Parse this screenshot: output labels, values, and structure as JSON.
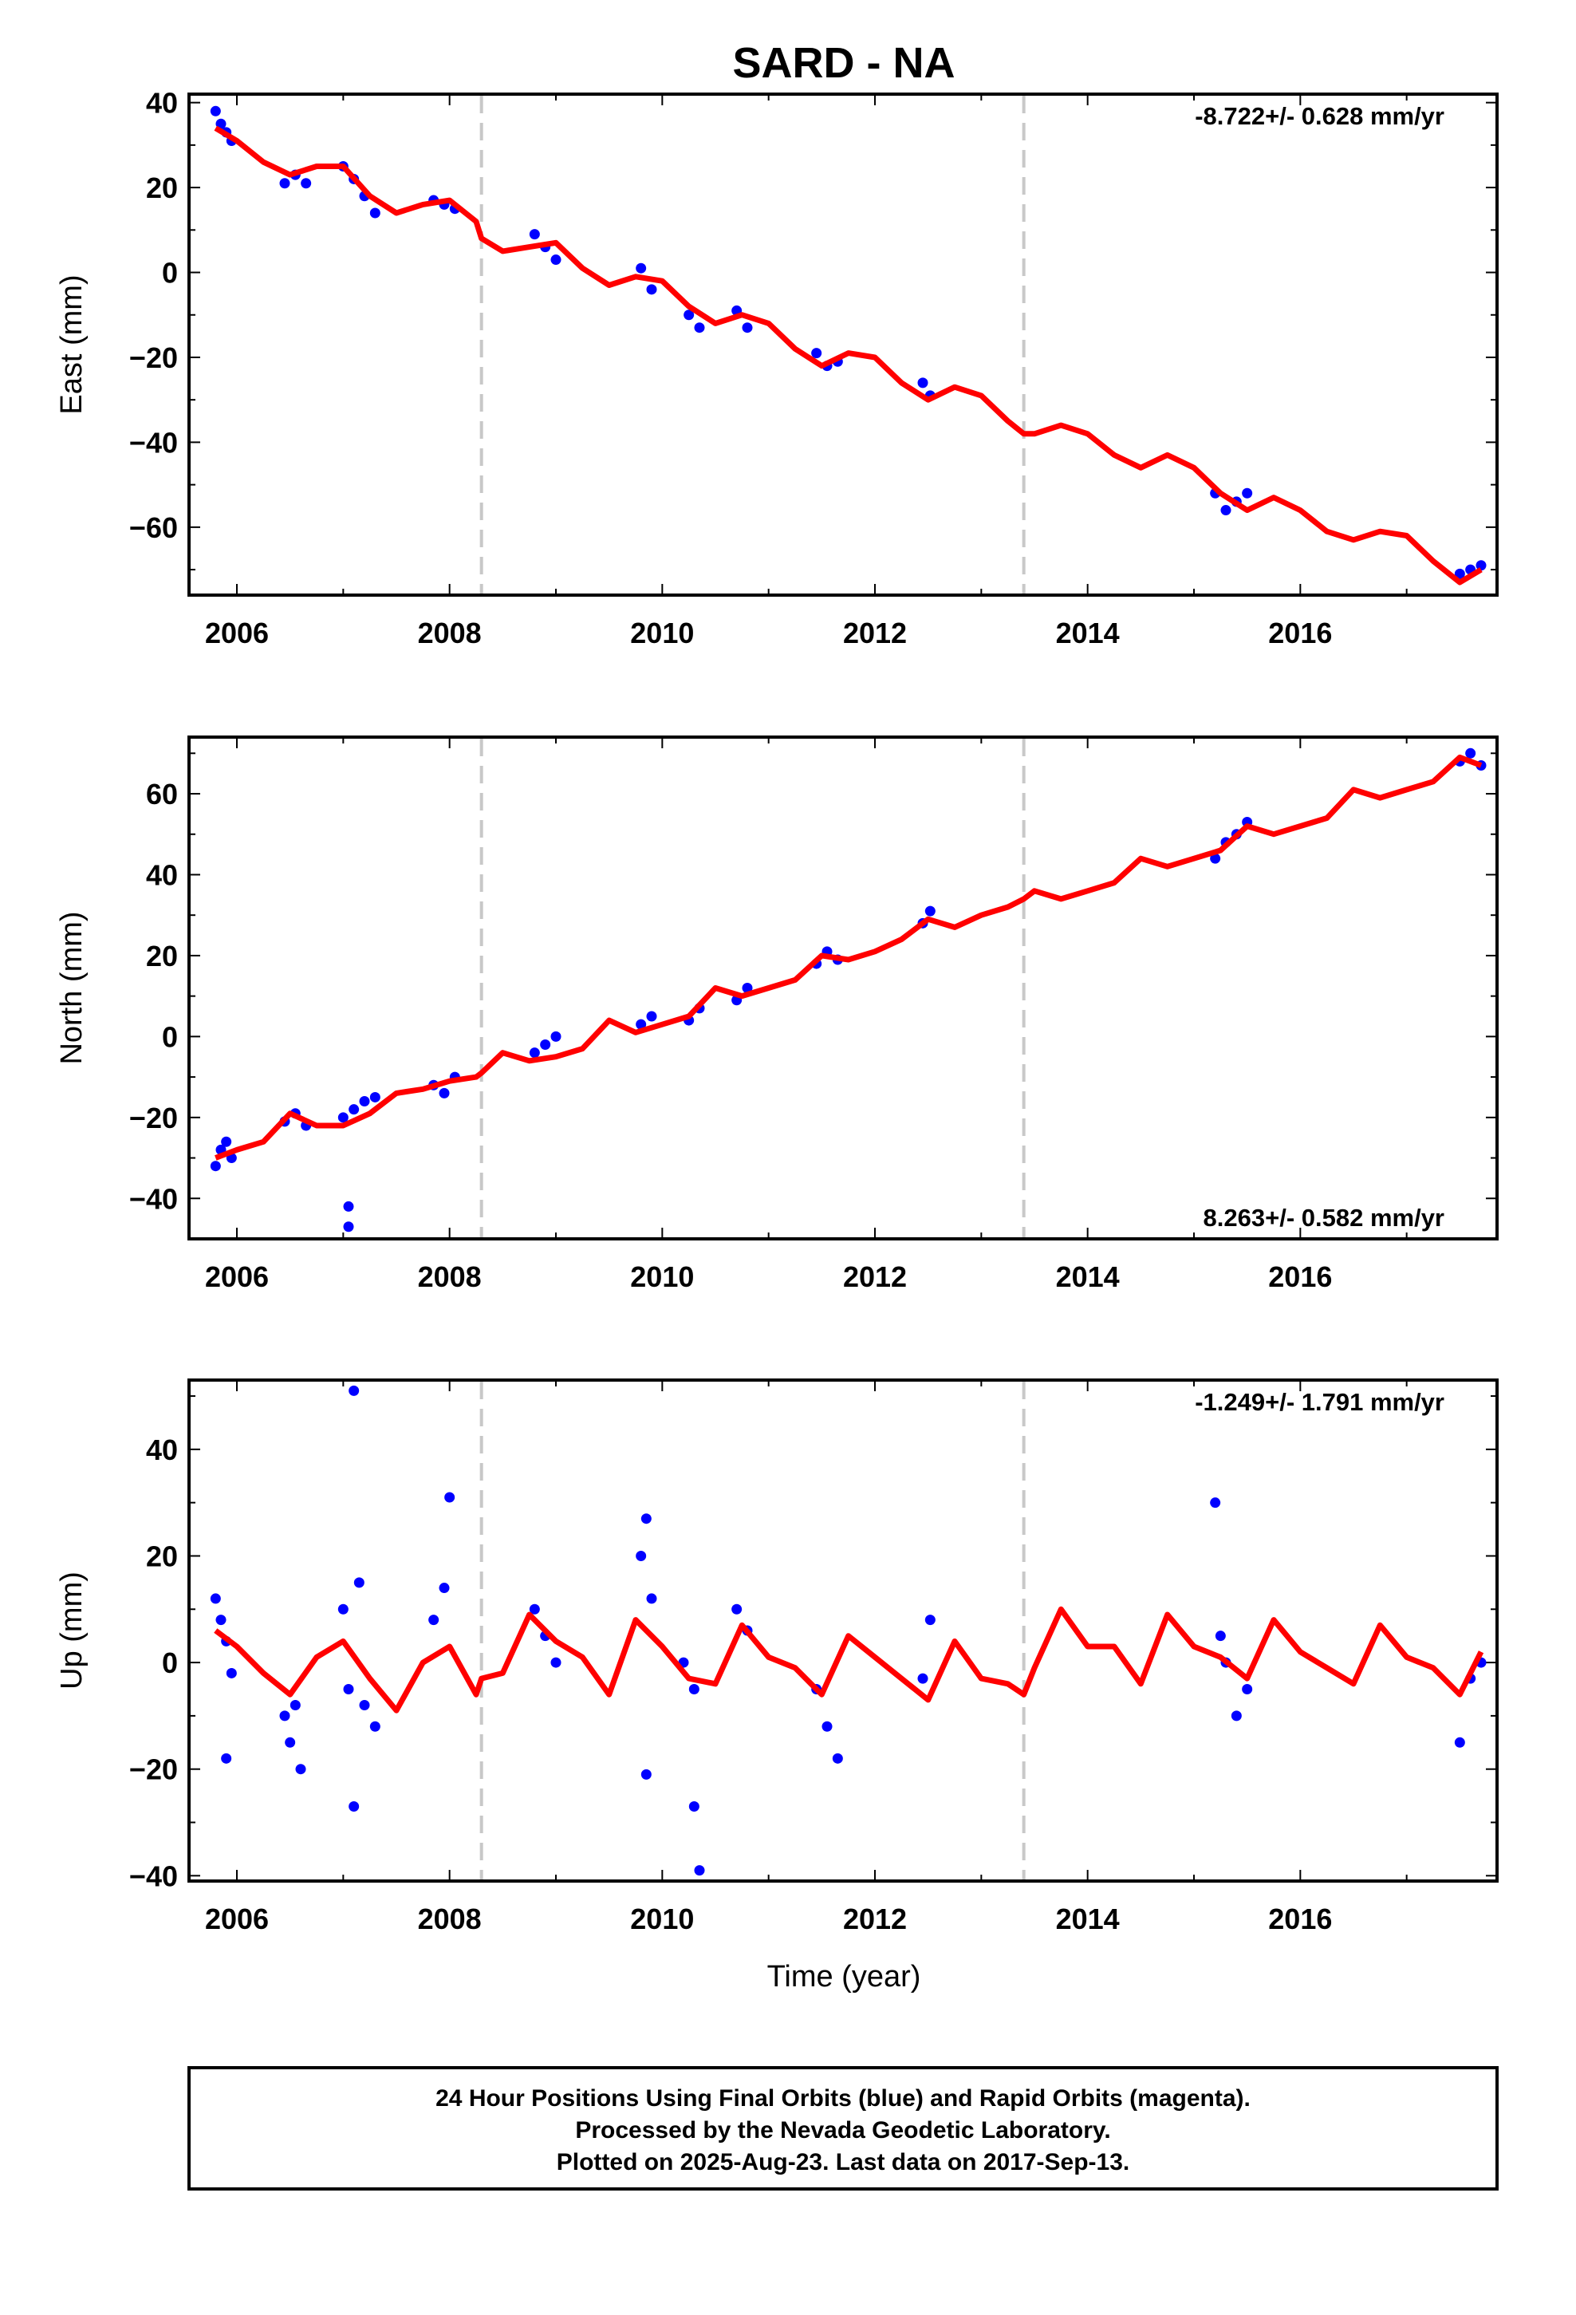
{
  "title": "SARD - NA",
  "xlabel": "Time (year)",
  "footer": {
    "line1": "24 Hour Positions Using Final Orbits (blue) and Rapid Orbits (magenta).",
    "line2": "Processed by the Nevada Geodetic Laboratory.",
    "line3": "Plotted on 2025-Aug-23. Last data on 2017-Sep-13."
  },
  "colors": {
    "data": "#0000ff",
    "model": "#ff0000",
    "steps": "#c8c8c8",
    "frame": "#000000"
  },
  "chart_data": [
    {
      "type": "scatter",
      "title": "",
      "ylabel": "East (mm)",
      "rate_label": "-8.722+/- 0.628 mm/yr",
      "rate_position": "top-right",
      "xlim": [
        2005.55,
        2017.85
      ],
      "ylim": [
        -76,
        42
      ],
      "xticks": [
        2006,
        2008,
        2010,
        2012,
        2014,
        2016
      ],
      "yticks": [
        -60,
        -40,
        -20,
        0,
        20,
        40
      ],
      "step_epochs": [
        2008.3,
        2013.4
      ],
      "rate": -8.722,
      "series": [
        {
          "kind": "points",
          "x": [
            2005.8,
            2005.85,
            2005.9,
            2005.95,
            2006.45,
            2006.55,
            2006.65,
            2007.0,
            2007.1,
            2007.2,
            2007.3,
            2007.85,
            2007.95,
            2008.05,
            2008.8,
            2008.9,
            2009.0,
            2009.8,
            2009.9,
            2010.25,
            2010.35,
            2010.7,
            2010.8,
            2011.45,
            2011.55,
            2011.65,
            2012.45,
            2012.52,
            2015.2,
            2015.3,
            2015.4,
            2015.5,
            2017.5,
            2017.6,
            2017.7
          ],
          "y": [
            38,
            35,
            33,
            31,
            21,
            23,
            21,
            25,
            22,
            18,
            14,
            17,
            16,
            15,
            9,
            6,
            3,
            1,
            -4,
            -10,
            -13,
            -9,
            -13,
            -19,
            -22,
            -21,
            -26,
            -29,
            -52,
            -56,
            -54,
            -52,
            -71,
            -70,
            -69
          ]
        },
        {
          "kind": "model",
          "x": [
            2005.8,
            2006.0,
            2006.25,
            2006.5,
            2006.75,
            2007.0,
            2007.25,
            2007.5,
            2007.75,
            2008.0,
            2008.25,
            2008.3,
            2008.5,
            2008.75,
            2009.0,
            2009.25,
            2009.5,
            2009.75,
            2010.0,
            2010.25,
            2010.5,
            2010.75,
            2011.0,
            2011.25,
            2011.5,
            2011.75,
            2012.0,
            2012.25,
            2012.5,
            2012.75,
            2013.0,
            2013.25,
            2013.4,
            2013.5,
            2013.75,
            2014.0,
            2014.25,
            2014.5,
            2014.75,
            2015.0,
            2015.25,
            2015.5,
            2015.75,
            2016.0,
            2016.25,
            2016.5,
            2016.75,
            2017.0,
            2017.25,
            2017.5,
            2017.7
          ],
          "y": [
            34,
            31,
            26,
            23,
            25,
            25,
            18,
            14,
            16,
            17,
            12,
            8,
            5,
            6,
            7,
            1,
            -3,
            -1,
            -2,
            -8,
            -12,
            -10,
            -12,
            -18,
            -22,
            -19,
            -20,
            -26,
            -30,
            -27,
            -29,
            -35,
            -38,
            -38,
            -36,
            -38,
            -43,
            -46,
            -43,
            -46,
            -52,
            -56,
            -53,
            -56,
            -61,
            -63,
            -61,
            -62,
            -68,
            -73,
            -70
          ]
        }
      ]
    },
    {
      "type": "scatter",
      "title": "",
      "ylabel": "North (mm)",
      "rate_label": "8.263+/- 0.582 mm/yr",
      "rate_position": "bottom-right",
      "xlim": [
        2005.55,
        2017.85
      ],
      "ylim": [
        -50,
        74
      ],
      "xticks": [
        2006,
        2008,
        2010,
        2012,
        2014,
        2016
      ],
      "yticks": [
        -40,
        -20,
        0,
        20,
        40,
        60
      ],
      "step_epochs": [
        2008.3,
        2013.4
      ],
      "rate": 8.263,
      "series": [
        {
          "kind": "points",
          "x": [
            2005.8,
            2005.85,
            2005.9,
            2005.95,
            2006.45,
            2006.55,
            2006.65,
            2007.0,
            2007.05,
            2007.05,
            2007.1,
            2007.2,
            2007.3,
            2007.85,
            2007.95,
            2008.05,
            2008.8,
            2008.9,
            2009.0,
            2009.8,
            2009.9,
            2010.25,
            2010.35,
            2010.7,
            2010.8,
            2011.45,
            2011.55,
            2011.65,
            2012.45,
            2012.52,
            2015.2,
            2015.3,
            2015.4,
            2015.5,
            2017.5,
            2017.6,
            2017.7
          ],
          "y": [
            -32,
            -28,
            -26,
            -30,
            -21,
            -19,
            -22,
            -20,
            -42,
            -47,
            -18,
            -16,
            -15,
            -12,
            -14,
            -10,
            -4,
            -2,
            0,
            3,
            5,
            4,
            7,
            9,
            12,
            18,
            21,
            19,
            28,
            31,
            44,
            48,
            50,
            53,
            68,
            70,
            67
          ]
        },
        {
          "kind": "model",
          "x": [
            2005.8,
            2006.0,
            2006.25,
            2006.5,
            2006.75,
            2007.0,
            2007.25,
            2007.5,
            2007.75,
            2008.0,
            2008.25,
            2008.3,
            2008.5,
            2008.75,
            2009.0,
            2009.25,
            2009.5,
            2009.75,
            2010.0,
            2010.25,
            2010.5,
            2010.75,
            2011.0,
            2011.25,
            2011.5,
            2011.75,
            2012.0,
            2012.25,
            2012.5,
            2012.75,
            2013.0,
            2013.25,
            2013.4,
            2013.5,
            2013.75,
            2014.0,
            2014.25,
            2014.5,
            2014.75,
            2015.0,
            2015.25,
            2015.5,
            2015.75,
            2016.0,
            2016.25,
            2016.5,
            2016.75,
            2017.0,
            2017.25,
            2017.5,
            2017.7
          ],
          "y": [
            -30,
            -28,
            -26,
            -19,
            -22,
            -22,
            -19,
            -14,
            -13,
            -11,
            -10,
            -9,
            -4,
            -6,
            -5,
            -3,
            4,
            1,
            3,
            5,
            12,
            10,
            12,
            14,
            20,
            19,
            21,
            24,
            29,
            27,
            30,
            32,
            34,
            36,
            34,
            36,
            38,
            44,
            42,
            44,
            46,
            52,
            50,
            52,
            54,
            61,
            59,
            61,
            63,
            69,
            67
          ]
        }
      ]
    },
    {
      "type": "scatter",
      "title": "",
      "ylabel": "Up (mm)",
      "rate_label": "-1.249+/- 1.791 mm/yr",
      "rate_position": "top-right",
      "xlim": [
        2005.55,
        2017.85
      ],
      "ylim": [
        -41,
        53
      ],
      "xticks": [
        2006,
        2008,
        2010,
        2012,
        2014,
        2016
      ],
      "yticks": [
        -40,
        -20,
        0,
        20,
        40
      ],
      "step_epochs": [
        2008.3,
        2013.4
      ],
      "rate": -1.249,
      "series": [
        {
          "kind": "points",
          "x": [
            2005.8,
            2005.85,
            2005.9,
            2005.95,
            2005.9,
            2006.45,
            2006.5,
            2006.55,
            2006.6,
            2007.0,
            2007.05,
            2007.1,
            2007.1,
            2007.15,
            2007.2,
            2007.3,
            2007.85,
            2007.95,
            2008.0,
            2008.8,
            2008.9,
            2009.0,
            2009.8,
            2009.85,
            2009.9,
            2009.85,
            2010.2,
            2010.3,
            2010.35,
            2010.3,
            2010.7,
            2010.8,
            2011.45,
            2011.55,
            2011.65,
            2012.45,
            2012.52,
            2015.2,
            2015.25,
            2015.3,
            2015.4,
            2015.5,
            2017.5,
            2017.6,
            2017.7
          ],
          "y": [
            12,
            8,
            4,
            -2,
            -18,
            -10,
            -15,
            -8,
            -20,
            10,
            -5,
            51,
            -27,
            15,
            -8,
            -12,
            8,
            14,
            31,
            10,
            5,
            0,
            20,
            27,
            12,
            -21,
            0,
            -5,
            -39,
            -27,
            10,
            6,
            -5,
            -12,
            -18,
            -3,
            8,
            30,
            5,
            0,
            -10,
            -5,
            -15,
            -3,
            0
          ]
        },
        {
          "kind": "model",
          "x": [
            2005.8,
            2006.0,
            2006.25,
            2006.5,
            2006.75,
            2007.0,
            2007.25,
            2007.5,
            2007.75,
            2008.0,
            2008.25,
            2008.3,
            2008.5,
            2008.75,
            2009.0,
            2009.25,
            2009.5,
            2009.75,
            2010.0,
            2010.25,
            2010.5,
            2010.75,
            2011.0,
            2011.25,
            2011.5,
            2011.75,
            2012.0,
            2012.25,
            2012.5,
            2012.75,
            2013.0,
            2013.25,
            2013.4,
            2013.5,
            2013.75,
            2014.0,
            2014.25,
            2014.5,
            2014.75,
            2015.0,
            2015.25,
            2015.5,
            2015.75,
            2016.0,
            2016.25,
            2016.5,
            2016.75,
            2017.0,
            2017.25,
            2017.5,
            2017.7
          ],
          "y": [
            6,
            3,
            -2,
            -6,
            1,
            4,
            -3,
            -9,
            0,
            3,
            -6,
            -3,
            -2,
            9,
            4,
            1,
            -6,
            8,
            3,
            -3,
            -4,
            7,
            1,
            -1,
            -6,
            5,
            1,
            -3,
            -7,
            4,
            -3,
            -4,
            -6,
            -1,
            10,
            3,
            3,
            -4,
            9,
            3,
            1,
            -3,
            8,
            2,
            -1,
            -4,
            7,
            1,
            -1,
            -6,
            2
          ]
        }
      ]
    }
  ]
}
